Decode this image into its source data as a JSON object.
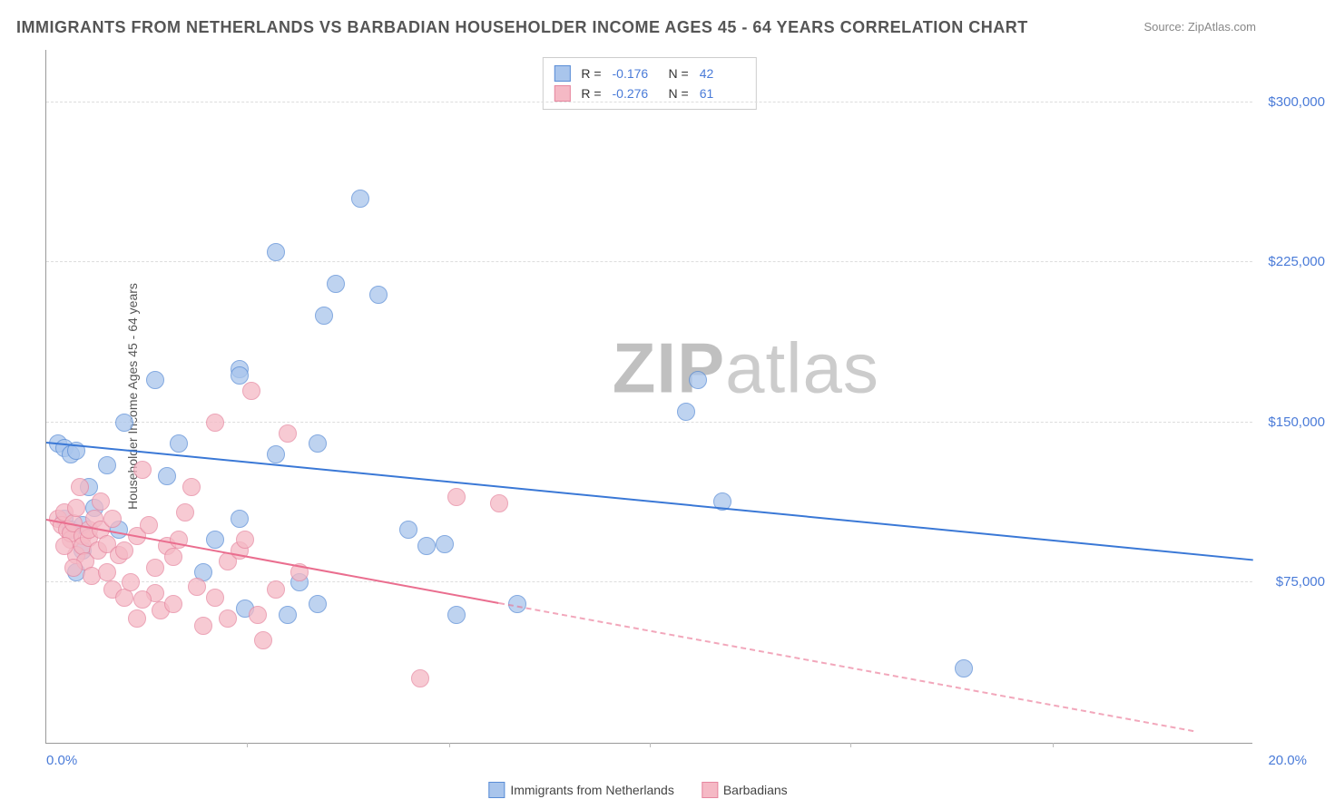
{
  "title": "IMMIGRANTS FROM NETHERLANDS VS BARBADIAN HOUSEHOLDER INCOME AGES 45 - 64 YEARS CORRELATION CHART",
  "source": "Source: ZipAtlas.com",
  "watermark_zip": "ZIP",
  "watermark_atlas": "atlas",
  "yaxis_label": "Householder Income Ages 45 - 64 years",
  "chart": {
    "type": "scatter",
    "xlim": [
      0,
      20
    ],
    "ylim": [
      0,
      325000
    ],
    "xtick_start": "0.0%",
    "xtick_end": "20.0%",
    "xtick_minor": [
      3.33,
      6.67,
      10.0,
      13.33,
      16.67
    ],
    "y_gridlines": [
      75000,
      150000,
      225000,
      300000
    ],
    "y_labels": [
      "$75,000",
      "$150,000",
      "$225,000",
      "$300,000"
    ],
    "background_color": "#ffffff",
    "grid_color": "#dddddd",
    "axis_color": "#999999",
    "label_color": "#4a7bd8"
  },
  "series": [
    {
      "name": "Immigrants from Netherlands",
      "fill": "#a9c5ec",
      "stroke": "#5a8dd6",
      "line_color": "#3a78d6",
      "R": "-0.176",
      "N": "42",
      "marker_radius": 10,
      "trend": {
        "x1": 0,
        "y1": 140000,
        "x2": 20,
        "y2": 85000,
        "solid_until": 20
      },
      "points": [
        [
          0.2,
          140000
        ],
        [
          0.3,
          138000
        ],
        [
          0.4,
          135000
        ],
        [
          0.5,
          137000
        ],
        [
          0.3,
          105000
        ],
        [
          0.4,
          100000
        ],
        [
          0.6,
          102000
        ],
        [
          0.5,
          80000
        ],
        [
          0.6,
          90000
        ],
        [
          0.8,
          110000
        ],
        [
          1.3,
          150000
        ],
        [
          1.8,
          170000
        ],
        [
          2.0,
          125000
        ],
        [
          2.2,
          140000
        ],
        [
          3.2,
          175000
        ],
        [
          3.2,
          172000
        ],
        [
          3.8,
          135000
        ],
        [
          2.8,
          95000
        ],
        [
          2.6,
          80000
        ],
        [
          3.2,
          105000
        ],
        [
          4.5,
          140000
        ],
        [
          3.8,
          230000
        ],
        [
          4.8,
          215000
        ],
        [
          4.6,
          200000
        ],
        [
          4.2,
          75000
        ],
        [
          4.5,
          65000
        ],
        [
          5.2,
          255000
        ],
        [
          5.5,
          210000
        ],
        [
          6.0,
          100000
        ],
        [
          6.3,
          92000
        ],
        [
          6.6,
          93000
        ],
        [
          6.8,
          60000
        ],
        [
          7.8,
          65000
        ],
        [
          10.8,
          170000
        ],
        [
          10.6,
          155000
        ],
        [
          11.2,
          113000
        ],
        [
          1.0,
          130000
        ],
        [
          1.2,
          100000
        ],
        [
          0.7,
          120000
        ],
        [
          4.0,
          60000
        ],
        [
          3.3,
          63000
        ],
        [
          15.2,
          35000
        ]
      ]
    },
    {
      "name": "Barbadians",
      "fill": "#f5b9c5",
      "stroke": "#e687a0",
      "line_color": "#ea6e8f",
      "R": "-0.276",
      "N": "61",
      "marker_radius": 10,
      "trend": {
        "x1": 0,
        "y1": 104000,
        "x2": 19,
        "y2": 5000,
        "solid_until": 7.5
      },
      "points": [
        [
          0.2,
          105000
        ],
        [
          0.25,
          102000
        ],
        [
          0.3,
          108000
        ],
        [
          0.35,
          100000
        ],
        [
          0.4,
          95000
        ],
        [
          0.4,
          98000
        ],
        [
          0.45,
          103000
        ],
        [
          0.5,
          88000
        ],
        [
          0.5,
          110000
        ],
        [
          0.55,
          120000
        ],
        [
          0.6,
          97000
        ],
        [
          0.6,
          92000
        ],
        [
          0.65,
          85000
        ],
        [
          0.7,
          96000
        ],
        [
          0.7,
          100000
        ],
        [
          0.75,
          78000
        ],
        [
          0.8,
          105000
        ],
        [
          0.85,
          90000
        ],
        [
          0.9,
          100000
        ],
        [
          0.9,
          113000
        ],
        [
          1.0,
          80000
        ],
        [
          1.0,
          93000
        ],
        [
          1.1,
          72000
        ],
        [
          1.1,
          105000
        ],
        [
          1.2,
          88000
        ],
        [
          1.3,
          68000
        ],
        [
          1.3,
          90000
        ],
        [
          1.4,
          75000
        ],
        [
          1.5,
          97000
        ],
        [
          1.6,
          128000
        ],
        [
          1.7,
          102000
        ],
        [
          1.8,
          70000
        ],
        [
          1.8,
          82000
        ],
        [
          2.0,
          92000
        ],
        [
          2.1,
          87000
        ],
        [
          2.2,
          95000
        ],
        [
          2.3,
          108000
        ],
        [
          2.4,
          120000
        ],
        [
          2.5,
          73000
        ],
        [
          2.6,
          55000
        ],
        [
          2.8,
          150000
        ],
        [
          2.8,
          68000
        ],
        [
          3.0,
          85000
        ],
        [
          3.0,
          58000
        ],
        [
          3.2,
          90000
        ],
        [
          3.3,
          95000
        ],
        [
          3.4,
          165000
        ],
        [
          3.5,
          60000
        ],
        [
          3.6,
          48000
        ],
        [
          3.8,
          72000
        ],
        [
          4.0,
          145000
        ],
        [
          4.2,
          80000
        ],
        [
          1.9,
          62000
        ],
        [
          2.1,
          65000
        ],
        [
          0.3,
          92000
        ],
        [
          0.45,
          82000
        ],
        [
          1.5,
          58000
        ],
        [
          1.6,
          67000
        ],
        [
          6.8,
          115000
        ],
        [
          7.5,
          112000
        ],
        [
          6.2,
          30000
        ]
      ]
    }
  ],
  "legend_bottom": [
    "Immigrants from Netherlands",
    "Barbadians"
  ]
}
